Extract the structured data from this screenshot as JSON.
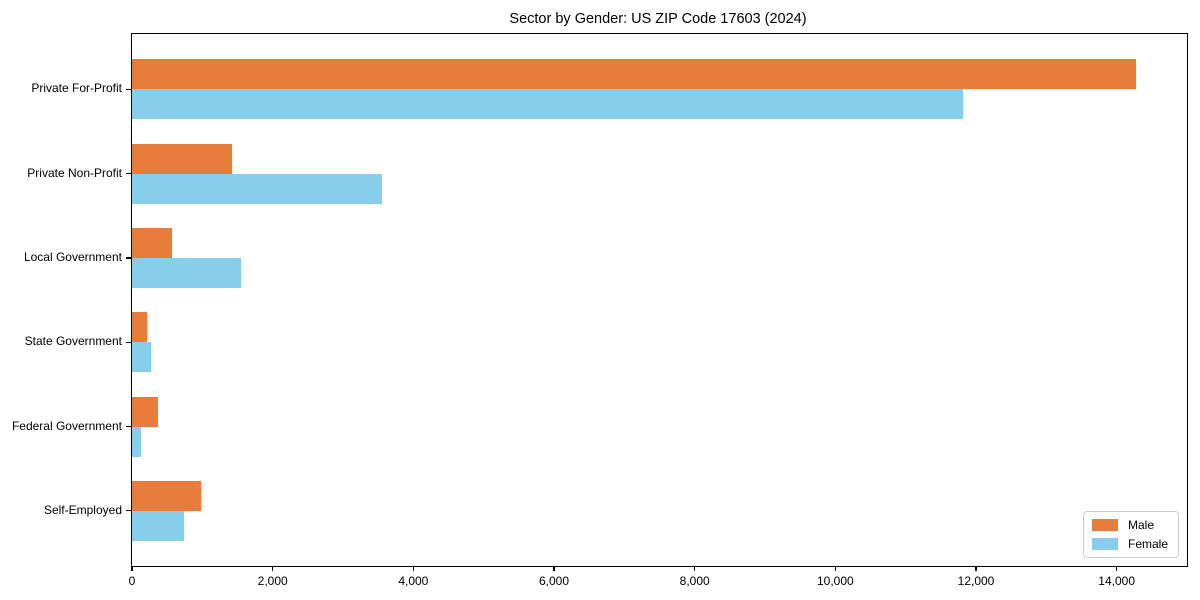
{
  "chart_data": {
    "type": "bar",
    "orientation": "horizontal",
    "title": "Sector by Gender: US ZIP Code 17603 (2024)",
    "categories": [
      "Private For-Profit",
      "Private Non-Profit",
      "Local Government",
      "State Government",
      "Federal Government",
      "Self-Employed"
    ],
    "series": [
      {
        "name": "Male",
        "color": "#E87D3B",
        "values": [
          14270,
          1420,
          570,
          210,
          370,
          980
        ]
      },
      {
        "name": "Female",
        "color": "#87CEEB",
        "values": [
          11810,
          3550,
          1550,
          270,
          130,
          740
        ]
      }
    ],
    "xlabel": "",
    "ylabel": "",
    "xlim": [
      0,
      15000
    ],
    "xticks": [
      0,
      2000,
      4000,
      6000,
      8000,
      10000,
      12000,
      14000
    ],
    "xtick_labels": [
      "0",
      "2,000",
      "4,000",
      "6,000",
      "8,000",
      "10,000",
      "12,000",
      "14,000"
    ],
    "grid": false,
    "legend": {
      "position": "lower-right",
      "entries": [
        "Male",
        "Female"
      ]
    }
  }
}
